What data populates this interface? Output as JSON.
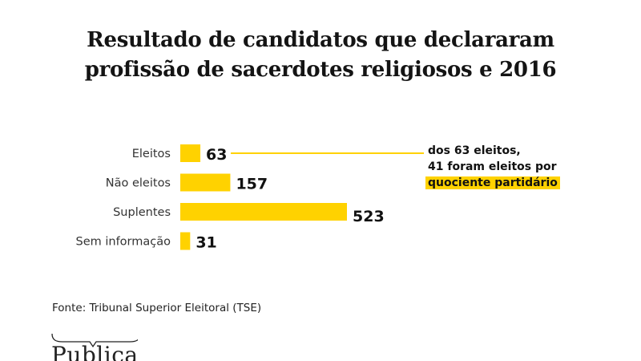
{
  "chart_data": {
    "type": "bar",
    "orientation": "horizontal",
    "title": "Resultado de candidatos que declararam profissão de sacerdotes religiosos e 2016",
    "title_lines": [
      "Resultado de candidatos que declararam",
      "profissão de sacerdotes religiosos e 2016"
    ],
    "categories": [
      "Eleitos",
      "Não eleitos",
      "Suplentes",
      "Sem informação"
    ],
    "values": [
      63,
      157,
      523,
      31
    ],
    "value_labels": [
      "63",
      "157",
      "523",
      "31"
    ],
    "xlabel": "",
    "ylabel": "",
    "xlim": [
      0,
      523
    ],
    "grid": false,
    "bar_color": "#ffd200",
    "annotation": {
      "target_category": "Eleitos",
      "lines": [
        "dos 63 eleitos,",
        "41 foram eleitos por"
      ],
      "highlight": "quociente partidário",
      "highlight_color": "#ffd200"
    }
  },
  "source": "Fonte: Tribunal Superior Eleitoral (TSE)",
  "logo": {
    "text": "Publica"
  }
}
